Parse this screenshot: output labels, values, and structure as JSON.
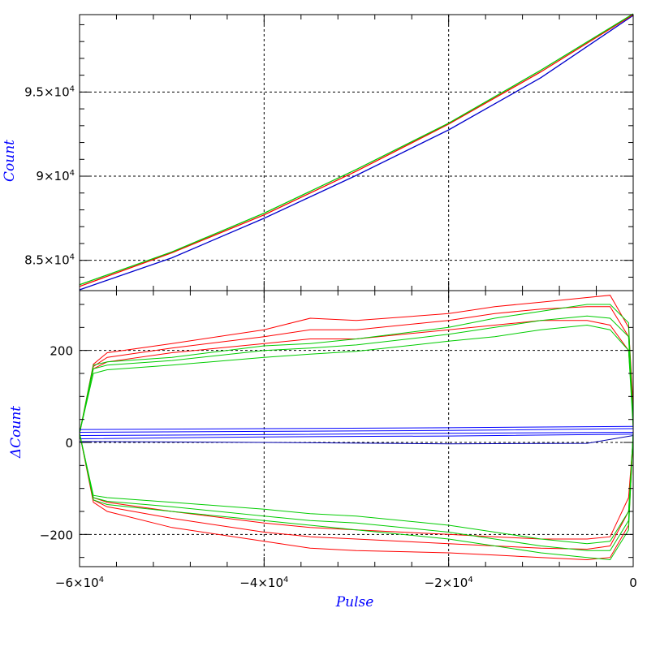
{
  "chart_data": [
    {
      "type": "line",
      "panel": "top",
      "ylabel": "Count",
      "xlim": [
        -60000,
        0
      ],
      "ylim": [
        83200,
        99600
      ],
      "yticks": [
        {
          "value": 95000,
          "mant": "9.5",
          "exp": "4"
        },
        {
          "value": 90000,
          "mant": "9",
          "exp": "4"
        },
        {
          "value": 85000,
          "mant": "8.5",
          "exp": "4"
        }
      ],
      "grid": true,
      "series": [
        {
          "color": "#0000cc",
          "x": [
            -60000,
            -50000,
            -40000,
            -30000,
            -20000,
            -10000,
            0
          ],
          "y": [
            83250,
            85150,
            87500,
            90050,
            92750,
            95850,
            99550
          ]
        },
        {
          "color": "#ff0000",
          "x": [
            -60000,
            -50000,
            -40000,
            -30000,
            -20000,
            -10000,
            0
          ],
          "y": [
            83450,
            85450,
            87700,
            90300,
            93100,
            96200,
            99600
          ]
        },
        {
          "color": "#00cc00",
          "x": [
            -60000,
            -50000,
            -40000,
            -30000,
            -20000,
            -10000,
            0
          ],
          "y": [
            83550,
            85500,
            87800,
            90400,
            93150,
            96300,
            99650
          ]
        }
      ]
    },
    {
      "type": "line",
      "panel": "bottom",
      "ylabel": "ΔCount",
      "xlabel": "Pulse",
      "xlim": [
        -60000,
        0
      ],
      "ylim": [
        -270,
        330
      ],
      "yticks": [
        {
          "value": 200,
          "label": "200"
        },
        {
          "value": 0,
          "label": "0"
        },
        {
          "value": -200,
          "label": "−200"
        }
      ],
      "xticks": [
        {
          "value": -60000,
          "sign": "−",
          "mant": "6",
          "exp": "4"
        },
        {
          "value": -40000,
          "sign": "−",
          "mant": "4",
          "exp": "4"
        },
        {
          "value": -20000,
          "sign": "−",
          "mant": "2",
          "exp": "4"
        },
        {
          "value": 0,
          "label": "0"
        }
      ],
      "grid": true,
      "series": [
        {
          "color": "#ff0000",
          "x": [
            -60000,
            -58500,
            -57000,
            -50000,
            -40000,
            -35000,
            -30000,
            -20000,
            -15000,
            -10000,
            -5000,
            -2500,
            -500,
            0
          ],
          "y": [
            20,
            170,
            195,
            215,
            245,
            270,
            265,
            280,
            295,
            305,
            315,
            320,
            250,
            80
          ]
        },
        {
          "color": "#ff0000",
          "x": [
            -60000,
            -58500,
            -57000,
            -50000,
            -40000,
            -35000,
            -30000,
            -20000,
            -15000,
            -10000,
            -5000,
            -2500,
            -500,
            0
          ],
          "y": [
            20,
            165,
            185,
            205,
            230,
            245,
            245,
            265,
            280,
            290,
            295,
            295,
            230,
            70
          ]
        },
        {
          "color": "#ff0000",
          "x": [
            -60000,
            -58500,
            -57000,
            -50000,
            -40000,
            -35000,
            -30000,
            -20000,
            -15000,
            -10000,
            -5000,
            -2500,
            -500,
            0
          ],
          "y": [
            20,
            160,
            175,
            195,
            215,
            225,
            225,
            245,
            255,
            265,
            265,
            255,
            200,
            60
          ]
        },
        {
          "color": "#00cc00",
          "x": [
            -60000,
            -58500,
            -57000,
            -50000,
            -40000,
            -35000,
            -30000,
            -20000,
            -15000,
            -10000,
            -5000,
            -2500,
            -500,
            0
          ],
          "y": [
            20,
            168,
            175,
            185,
            210,
            215,
            225,
            250,
            270,
            285,
            300,
            300,
            260,
            40
          ]
        },
        {
          "color": "#00cc00",
          "x": [
            -60000,
            -58500,
            -57000,
            -50000,
            -40000,
            -35000,
            -30000,
            -20000,
            -15000,
            -10000,
            -5000,
            -2500,
            -500,
            0
          ],
          "y": [
            20,
            160,
            168,
            178,
            200,
            205,
            212,
            235,
            250,
            265,
            275,
            270,
            230,
            35
          ]
        },
        {
          "color": "#00cc00",
          "x": [
            -60000,
            -58500,
            -57000,
            -50000,
            -40000,
            -35000,
            -30000,
            -20000,
            -15000,
            -10000,
            -5000,
            -2500,
            -500,
            0
          ],
          "y": [
            20,
            150,
            158,
            168,
            185,
            192,
            198,
            220,
            230,
            245,
            255,
            245,
            200,
            30
          ]
        },
        {
          "color": "#0000ff",
          "x": [
            -60000,
            -40000,
            -20000,
            0
          ],
          "y": [
            28,
            30,
            32,
            35
          ]
        },
        {
          "color": "#0000ff",
          "x": [
            -60000,
            -40000,
            -20000,
            0
          ],
          "y": [
            22,
            24,
            26,
            30
          ]
        },
        {
          "color": "#0000ff",
          "x": [
            -60000,
            -40000,
            -20000,
            0
          ],
          "y": [
            15,
            17,
            20,
            22
          ]
        },
        {
          "color": "#0000ff",
          "x": [
            -60000,
            -40000,
            -20000,
            0
          ],
          "y": [
            8,
            12,
            14,
            18
          ]
        },
        {
          "color": "#0000aa",
          "x": [
            -60000,
            -40000,
            -20000,
            -5000,
            0
          ],
          "y": [
            2,
            0,
            -3,
            -2,
            15
          ]
        },
        {
          "color": "#ff0000",
          "x": [
            -60000,
            -58500,
            -57000,
            -50000,
            -40000,
            -35000,
            -30000,
            -20000,
            -15000,
            -10000,
            -5000,
            -2500,
            -500,
            0
          ],
          "y": [
            20,
            -120,
            -130,
            -150,
            -175,
            -185,
            -190,
            -200,
            -205,
            -210,
            -210,
            -205,
            -120,
            10
          ]
        },
        {
          "color": "#ff0000",
          "x": [
            -60000,
            -58500,
            -57000,
            -50000,
            -40000,
            -35000,
            -30000,
            -20000,
            -15000,
            -10000,
            -5000,
            -2500,
            -500,
            0
          ],
          "y": [
            20,
            -125,
            -140,
            -165,
            -195,
            -205,
            -210,
            -220,
            -225,
            -230,
            -232,
            -225,
            -150,
            10
          ]
        },
        {
          "color": "#ff0000",
          "x": [
            -60000,
            -58500,
            -57000,
            -50000,
            -40000,
            -35000,
            -30000,
            -20000,
            -15000,
            -10000,
            -5000,
            -2500,
            -500,
            0
          ],
          "y": [
            20,
            -130,
            -150,
            -185,
            -215,
            -230,
            -235,
            -240,
            -245,
            -250,
            -255,
            -250,
            -180,
            10
          ]
        },
        {
          "color": "#00cc00",
          "x": [
            -60000,
            -58500,
            -57000,
            -50000,
            -40000,
            -35000,
            -30000,
            -20000,
            -15000,
            -10000,
            -5000,
            -2500,
            -500,
            0
          ],
          "y": [
            20,
            -115,
            -120,
            -130,
            -145,
            -155,
            -160,
            -180,
            -195,
            -210,
            -220,
            -215,
            -150,
            20
          ]
        },
        {
          "color": "#00cc00",
          "x": [
            -60000,
            -58500,
            -57000,
            -50000,
            -40000,
            -35000,
            -30000,
            -20000,
            -15000,
            -10000,
            -5000,
            -2500,
            -500,
            0
          ],
          "y": [
            20,
            -120,
            -128,
            -140,
            -160,
            -170,
            -175,
            -195,
            -210,
            -225,
            -235,
            -235,
            -170,
            20
          ]
        },
        {
          "color": "#00cc00",
          "x": [
            -60000,
            -58500,
            -57000,
            -50000,
            -40000,
            -35000,
            -30000,
            -20000,
            -15000,
            -10000,
            -5000,
            -2500,
            -500,
            0
          ],
          "y": [
            20,
            -125,
            -135,
            -150,
            -170,
            -180,
            -190,
            -210,
            -225,
            -240,
            -250,
            -255,
            -190,
            20
          ]
        }
      ]
    }
  ]
}
